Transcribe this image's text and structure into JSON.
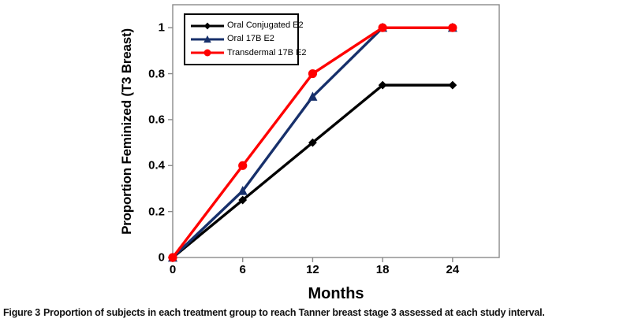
{
  "caption": {
    "label": "Figure 3",
    "text": "Proportion of subjects in each treatment group to reach Tanner breast stage 3 assessed at each study interval."
  },
  "chart_data": {
    "type": "line",
    "title": "",
    "xlabel": "Months",
    "ylabel": "Proportion Feminized (T3 Breast)",
    "x": [
      0,
      6,
      12,
      18,
      24
    ],
    "x_tick_labels": [
      "0",
      "6",
      "12",
      "18",
      "24"
    ],
    "y_ticks": [
      0,
      0.2,
      0.4,
      0.6,
      0.8,
      1
    ],
    "y_tick_labels": [
      "0",
      "0.2",
      "0.4",
      "0.6",
      "0.8",
      "1"
    ],
    "xlim": [
      0,
      28
    ],
    "ylim": [
      0,
      1.1
    ],
    "grid": false,
    "legend_position": "top-left-inside",
    "axis_color": "#8a8a8a",
    "series": [
      {
        "name": "Oral Conjugated E2",
        "color": "#000000",
        "marker": "diamond",
        "values": [
          0,
          0.25,
          0.5,
          0.75,
          0.75
        ]
      },
      {
        "name": "Oral 17B E2",
        "color": "#17306B",
        "marker": "triangle",
        "values": [
          0,
          0.29,
          0.7,
          1,
          1
        ]
      },
      {
        "name": "Transdermal 17B E2",
        "color": "#FF0000",
        "marker": "circle",
        "values": [
          0,
          0.4,
          0.8,
          1,
          1
        ]
      }
    ]
  }
}
